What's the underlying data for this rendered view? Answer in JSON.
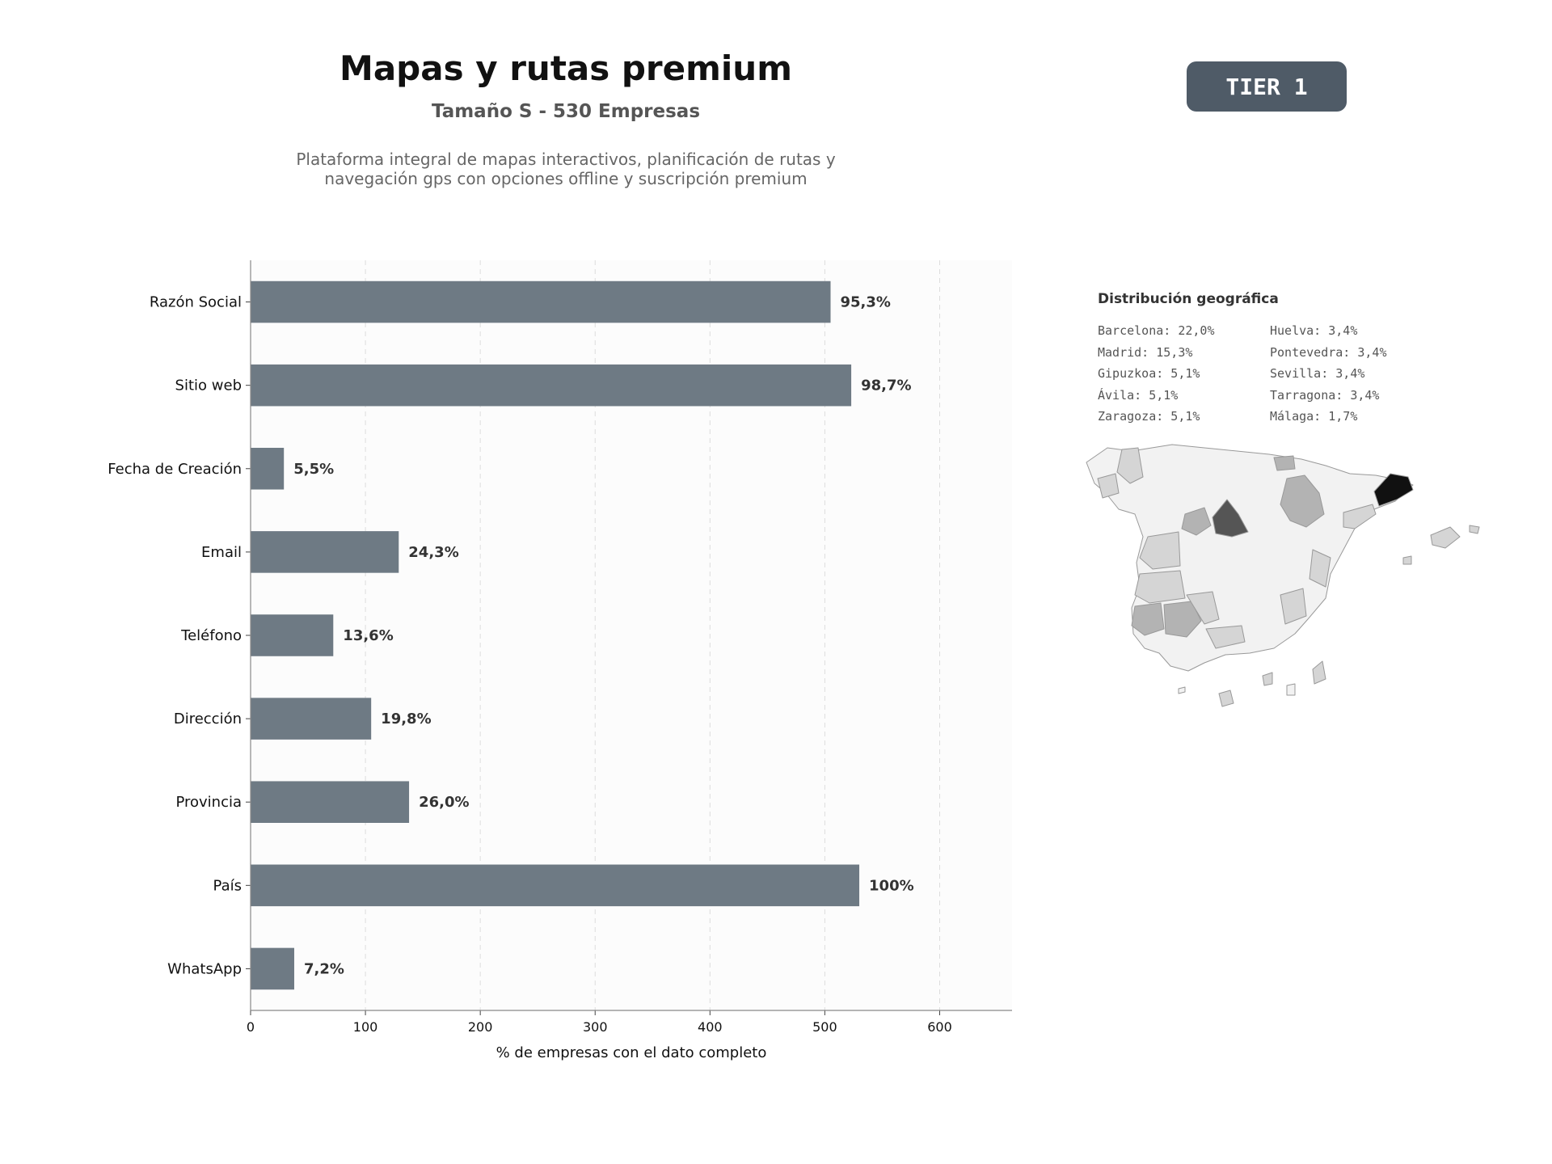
{
  "header": {
    "title": "Mapas y rutas premium",
    "subtitle": "Tamaño S - 530 Empresas",
    "description_line1": "Plataforma integral de mapas interactivos, planificación de rutas y",
    "description_line2": "navegación gps con opciones offline y suscripción premium",
    "tier": "TIER 1"
  },
  "chart_data": {
    "type": "bar",
    "orientation": "horizontal",
    "categories": [
      "Razón Social",
      "Sitio web",
      "Fecha de Creación",
      "Email",
      "Teléfono",
      "Dirección",
      "Provincia",
      "País",
      "WhatsApp"
    ],
    "values": [
      505,
      523,
      29,
      129,
      72,
      105,
      138,
      530,
      38
    ],
    "value_labels": [
      "95,3%",
      "98,7%",
      "5,5%",
      "24,3%",
      "13,6%",
      "19,8%",
      "26,0%",
      "100%",
      "7,2%"
    ],
    "xlabel": "% de empresas con el dato completo",
    "ylabel": "",
    "xlim": [
      0,
      663
    ],
    "xticks": [
      0,
      100,
      200,
      300,
      400,
      500,
      600
    ],
    "grid": "vertical-dashed",
    "bar_color": "#6e7a84"
  },
  "geo": {
    "title": "Distribución geográfica",
    "items": [
      "Barcelona: 22,0%",
      "Huelva: 3,4%",
      "Madrid: 15,3%",
      "Pontevedra: 3,4%",
      "Gipuzkoa: 5,1%",
      "Sevilla: 3,4%",
      "Ávila: 5,1%",
      "Tarragona: 3,4%",
      "Zaragoza: 5,1%",
      "Málaga: 1,7%"
    ],
    "map_colors": {
      "barcelona": "#111111",
      "madrid": "#555555",
      "mid": "#b3b3b3",
      "light": "#d5d5d5",
      "base": "#f2f2f2",
      "border": "#999999"
    }
  }
}
